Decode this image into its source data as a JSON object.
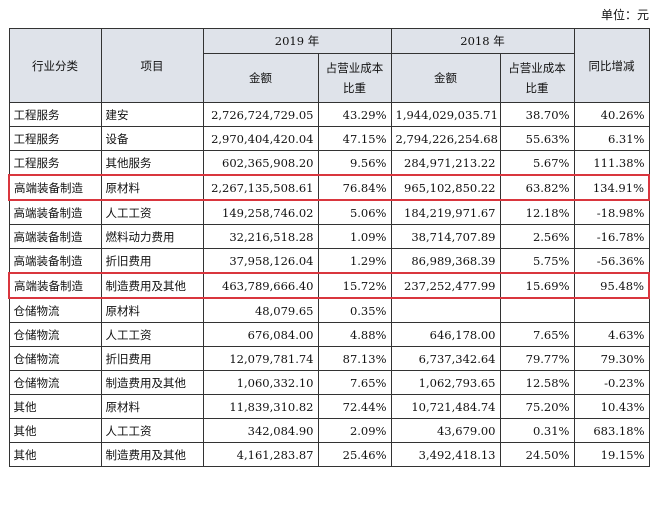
{
  "unit_label": "单位：元",
  "headers": {
    "industry": "行业分类",
    "item": "项目",
    "year_2019": "2019 年",
    "year_2018": "2018 年",
    "amount": "金额",
    "ratio": "占营业成本比重",
    "yoy": "同比增减"
  },
  "rows": [
    {
      "industry": "工程服务",
      "item": "建安",
      "amt2019": "2,726,724,729.05",
      "pct2019": "43.29%",
      "amt2018": "1,944,029,035.71",
      "pct2018": "38.70%",
      "yoy": "40.26%",
      "highlight": false
    },
    {
      "industry": "工程服务",
      "item": "设备",
      "amt2019": "2,970,404,420.04",
      "pct2019": "47.15%",
      "amt2018": "2,794,226,254.68",
      "pct2018": "55.63%",
      "yoy": "6.31%",
      "highlight": false
    },
    {
      "industry": "工程服务",
      "item": "其他服务",
      "amt2019": "602,365,908.20",
      "pct2019": "9.56%",
      "amt2018": "284,971,213.22",
      "pct2018": "5.67%",
      "yoy": "111.38%",
      "highlight": false
    },
    {
      "industry": "高端装备制造",
      "item": "原材料",
      "amt2019": "2,267,135,508.61",
      "pct2019": "76.84%",
      "amt2018": "965,102,850.22",
      "pct2018": "63.82%",
      "yoy": "134.91%",
      "highlight": true
    },
    {
      "industry": "高端装备制造",
      "item": "人工工资",
      "amt2019": "149,258,746.02",
      "pct2019": "5.06%",
      "amt2018": "184,219,971.67",
      "pct2018": "12.18%",
      "yoy": "-18.98%",
      "highlight": false
    },
    {
      "industry": "高端装备制造",
      "item": "燃料动力费用",
      "amt2019": "32,216,518.28",
      "pct2019": "1.09%",
      "amt2018": "38,714,707.89",
      "pct2018": "2.56%",
      "yoy": "-16.78%",
      "highlight": false
    },
    {
      "industry": "高端装备制造",
      "item": "折旧费用",
      "amt2019": "37,958,126.04",
      "pct2019": "1.29%",
      "amt2018": "86,989,368.39",
      "pct2018": "5.75%",
      "yoy": "-56.36%",
      "highlight": false
    },
    {
      "industry": "高端装备制造",
      "item": "制造费用及其他",
      "amt2019": "463,789,666.40",
      "pct2019": "15.72%",
      "amt2018": "237,252,477.99",
      "pct2018": "15.69%",
      "yoy": "95.48%",
      "highlight": true
    },
    {
      "industry": "仓储物流",
      "item": "原材料",
      "amt2019": "48,079.65",
      "pct2019": "0.35%",
      "amt2018": "",
      "pct2018": "",
      "yoy": "",
      "highlight": false
    },
    {
      "industry": "仓储物流",
      "item": "人工工资",
      "amt2019": "676,084.00",
      "pct2019": "4.88%",
      "amt2018": "646,178.00",
      "pct2018": "7.65%",
      "yoy": "4.63%",
      "highlight": false
    },
    {
      "industry": "仓储物流",
      "item": "折旧费用",
      "amt2019": "12,079,781.74",
      "pct2019": "87.13%",
      "amt2018": "6,737,342.64",
      "pct2018": "79.77%",
      "yoy": "79.30%",
      "highlight": false
    },
    {
      "industry": "仓储物流",
      "item": "制造费用及其他",
      "amt2019": "1,060,332.10",
      "pct2019": "7.65%",
      "amt2018": "1,062,793.65",
      "pct2018": "12.58%",
      "yoy": "-0.23%",
      "highlight": false
    },
    {
      "industry": "其他",
      "item": "原材料",
      "amt2019": "11,839,310.82",
      "pct2019": "72.44%",
      "amt2018": "10,721,484.74",
      "pct2018": "75.20%",
      "yoy": "10.43%",
      "highlight": false
    },
    {
      "industry": "其他",
      "item": "人工工资",
      "amt2019": "342,084.90",
      "pct2019": "2.09%",
      "amt2018": "43,679.00",
      "pct2018": "0.31%",
      "yoy": "683.18%",
      "highlight": false
    },
    {
      "industry": "其他",
      "item": "制造费用及其他",
      "amt2019": "4,161,283.87",
      "pct2019": "25.46%",
      "amt2018": "3,492,418.13",
      "pct2018": "24.50%",
      "yoy": "19.15%",
      "highlight": false
    }
  ],
  "colors": {
    "header_bg": "#dfe3ea",
    "highlight_border": "#d9363e"
  }
}
